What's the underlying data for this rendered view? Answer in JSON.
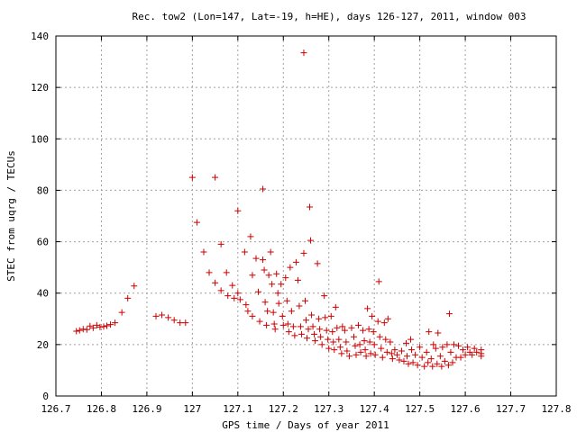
{
  "chart_data": {
    "type": "scatter",
    "title": "Rec. tow2 (Lon=147, Lat=-19, h=HE), days 126-127, 2011, window 003",
    "xlabel": "GPS time / Days of year 2011",
    "ylabel": "STEC from uqrg / TECUs",
    "xlim": [
      126.7,
      127.8
    ],
    "ylim": [
      0,
      140
    ],
    "xticks": [
      "126.7",
      "126.8",
      "126.9",
      "127",
      "127.1",
      "127.2",
      "127.3",
      "127.4",
      "127.5",
      "127.6",
      "127.7",
      "127.8"
    ],
    "xtick_values": [
      126.7,
      126.8,
      126.9,
      127.0,
      127.1,
      127.2,
      127.3,
      127.4,
      127.5,
      127.6,
      127.7,
      127.8
    ],
    "yticks": [
      "0",
      "20",
      "40",
      "60",
      "80",
      "100",
      "120",
      "140"
    ],
    "ytick_values": [
      0,
      20,
      40,
      60,
      80,
      100,
      120,
      140
    ],
    "grid": true,
    "marker_color": "#cc0000",
    "marker": "plus",
    "points": [
      [
        126.745,
        25.2
      ],
      [
        126.752,
        25.5
      ],
      [
        126.76,
        26.0
      ],
      [
        126.768,
        25.8
      ],
      [
        126.775,
        27.2
      ],
      [
        126.782,
        26.5
      ],
      [
        126.79,
        27.5
      ],
      [
        126.797,
        26.8
      ],
      [
        126.805,
        27.0
      ],
      [
        126.812,
        27.3
      ],
      [
        126.82,
        27.8
      ],
      [
        126.83,
        28.5
      ],
      [
        126.845,
        32.5
      ],
      [
        126.858,
        38.0
      ],
      [
        126.872,
        42.8
      ],
      [
        126.92,
        31.0
      ],
      [
        126.933,
        31.5
      ],
      [
        126.947,
        30.5
      ],
      [
        126.96,
        29.5
      ],
      [
        126.973,
        28.5
      ],
      [
        126.985,
        28.5
      ],
      [
        127.0,
        85.0
      ],
      [
        127.01,
        67.5
      ],
      [
        127.025,
        56.0
      ],
      [
        127.037,
        48.0
      ],
      [
        127.05,
        85.0
      ],
      [
        127.05,
        44.0
      ],
      [
        127.063,
        59.0
      ],
      [
        127.063,
        41.0
      ],
      [
        127.075,
        48.0
      ],
      [
        127.078,
        39.0
      ],
      [
        127.088,
        43.0
      ],
      [
        127.092,
        38.0
      ],
      [
        127.1,
        72.0
      ],
      [
        127.1,
        40.0
      ],
      [
        127.105,
        37.5
      ],
      [
        127.115,
        56.0
      ],
      [
        127.118,
        35.5
      ],
      [
        127.122,
        33.0
      ],
      [
        127.128,
        62.0
      ],
      [
        127.132,
        47.0
      ],
      [
        127.132,
        31.0
      ],
      [
        127.14,
        53.5
      ],
      [
        127.145,
        40.5
      ],
      [
        127.148,
        29.0
      ],
      [
        127.155,
        80.5
      ],
      [
        127.155,
        53.0
      ],
      [
        127.158,
        49.0
      ],
      [
        127.16,
        36.5
      ],
      [
        127.163,
        27.5
      ],
      [
        127.165,
        33.0
      ],
      [
        127.168,
        47.0
      ],
      [
        127.172,
        56.0
      ],
      [
        127.175,
        43.5
      ],
      [
        127.178,
        32.5
      ],
      [
        127.18,
        28.0
      ],
      [
        127.182,
        26.0
      ],
      [
        127.185,
        47.5
      ],
      [
        127.188,
        40.0
      ],
      [
        127.19,
        36.0
      ],
      [
        127.195,
        43.5
      ],
      [
        127.198,
        31.0
      ],
      [
        127.2,
        27.5
      ],
      [
        127.205,
        46.0
      ],
      [
        127.208,
        37.0
      ],
      [
        127.21,
        28.0
      ],
      [
        127.212,
        25.0
      ],
      [
        127.215,
        50.0
      ],
      [
        127.218,
        33.0
      ],
      [
        127.222,
        27.0
      ],
      [
        127.225,
        23.5
      ],
      [
        127.228,
        52.0
      ],
      [
        127.232,
        45.0
      ],
      [
        127.235,
        35.0
      ],
      [
        127.238,
        27.0
      ],
      [
        127.24,
        24.0
      ],
      [
        127.245,
        133.5
      ],
      [
        127.245,
        55.5
      ],
      [
        127.248,
        37.0
      ],
      [
        127.25,
        29.5
      ],
      [
        127.252,
        22.5
      ],
      [
        127.255,
        26.0
      ],
      [
        127.258,
        73.5
      ],
      [
        127.26,
        60.5
      ],
      [
        127.262,
        31.5
      ],
      [
        127.265,
        27.0
      ],
      [
        127.268,
        24.0
      ],
      [
        127.27,
        21.5
      ],
      [
        127.275,
        51.5
      ],
      [
        127.278,
        30.0
      ],
      [
        127.28,
        26.0
      ],
      [
        127.282,
        23.0
      ],
      [
        127.285,
        20.0
      ],
      [
        127.29,
        39.0
      ],
      [
        127.292,
        30.5
      ],
      [
        127.295,
        25.5
      ],
      [
        127.298,
        22.0
      ],
      [
        127.3,
        18.5
      ],
      [
        127.305,
        31.0
      ],
      [
        127.308,
        25.0
      ],
      [
        127.31,
        21.0
      ],
      [
        127.312,
        18.0
      ],
      [
        127.315,
        34.5
      ],
      [
        127.318,
        26.5
      ],
      [
        127.322,
        22.0
      ],
      [
        127.325,
        19.0
      ],
      [
        127.328,
        16.5
      ],
      [
        127.33,
        27.0
      ],
      [
        127.335,
        25.5
      ],
      [
        127.338,
        21.0
      ],
      [
        127.34,
        17.5
      ],
      [
        127.345,
        15.5
      ],
      [
        127.35,
        26.5
      ],
      [
        127.355,
        23.0
      ],
      [
        127.358,
        19.5
      ],
      [
        127.36,
        16.0
      ],
      [
        127.365,
        27.5
      ],
      [
        127.368,
        20.0
      ],
      [
        127.37,
        17.0
      ],
      [
        127.375,
        25.5
      ],
      [
        127.378,
        21.5
      ],
      [
        127.38,
        18.0
      ],
      [
        127.382,
        15.5
      ],
      [
        127.385,
        34.0
      ],
      [
        127.388,
        26.0
      ],
      [
        127.39,
        21.0
      ],
      [
        127.392,
        16.5
      ],
      [
        127.395,
        31.0
      ],
      [
        127.398,
        25.0
      ],
      [
        127.4,
        20.0
      ],
      [
        127.402,
        16.0
      ],
      [
        127.408,
        29.0
      ],
      [
        127.41,
        44.5
      ],
      [
        127.412,
        23.0
      ],
      [
        127.415,
        18.5
      ],
      [
        127.418,
        15.0
      ],
      [
        127.422,
        28.5
      ],
      [
        127.425,
        22.0
      ],
      [
        127.428,
        17.0
      ],
      [
        127.43,
        30.0
      ],
      [
        127.435,
        21.0
      ],
      [
        127.438,
        16.5
      ],
      [
        127.44,
        14.5
      ],
      [
        127.445,
        18.0
      ],
      [
        127.45,
        16.0
      ],
      [
        127.455,
        14.0
      ],
      [
        127.46,
        17.5
      ],
      [
        127.465,
        13.5
      ],
      [
        127.47,
        20.5
      ],
      [
        127.472,
        15.5
      ],
      [
        127.475,
        12.5
      ],
      [
        127.48,
        22.0
      ],
      [
        127.482,
        18.0
      ],
      [
        127.485,
        13.0
      ],
      [
        127.49,
        16.0
      ],
      [
        127.495,
        12.0
      ],
      [
        127.5,
        19.0
      ],
      [
        127.505,
        15.0
      ],
      [
        127.51,
        11.5
      ],
      [
        127.515,
        17.0
      ],
      [
        127.518,
        13.0
      ],
      [
        127.52,
        25.0
      ],
      [
        127.525,
        14.5
      ],
      [
        127.528,
        11.5
      ],
      [
        127.53,
        20.0
      ],
      [
        127.535,
        18.5
      ],
      [
        127.538,
        12.5
      ],
      [
        127.54,
        24.5
      ],
      [
        127.545,
        15.5
      ],
      [
        127.548,
        11.5
      ],
      [
        127.55,
        19.0
      ],
      [
        127.555,
        13.5
      ],
      [
        127.56,
        20.0
      ],
      [
        127.563,
        12.0
      ],
      [
        127.565,
        32.0
      ],
      [
        127.568,
        17.0
      ],
      [
        127.572,
        13.0
      ],
      [
        127.575,
        20.0
      ],
      [
        127.58,
        15.0
      ],
      [
        127.585,
        19.5
      ],
      [
        127.59,
        15.0
      ],
      [
        127.595,
        18.0
      ],
      [
        127.6,
        16.0
      ],
      [
        127.605,
        19.0
      ],
      [
        127.61,
        17.0
      ],
      [
        127.615,
        16.0
      ],
      [
        127.62,
        18.5
      ],
      [
        127.625,
        17.0
      ],
      [
        127.635,
        15.5
      ],
      [
        127.635,
        18.0
      ],
      [
        127.635,
        16.5
      ]
    ]
  }
}
